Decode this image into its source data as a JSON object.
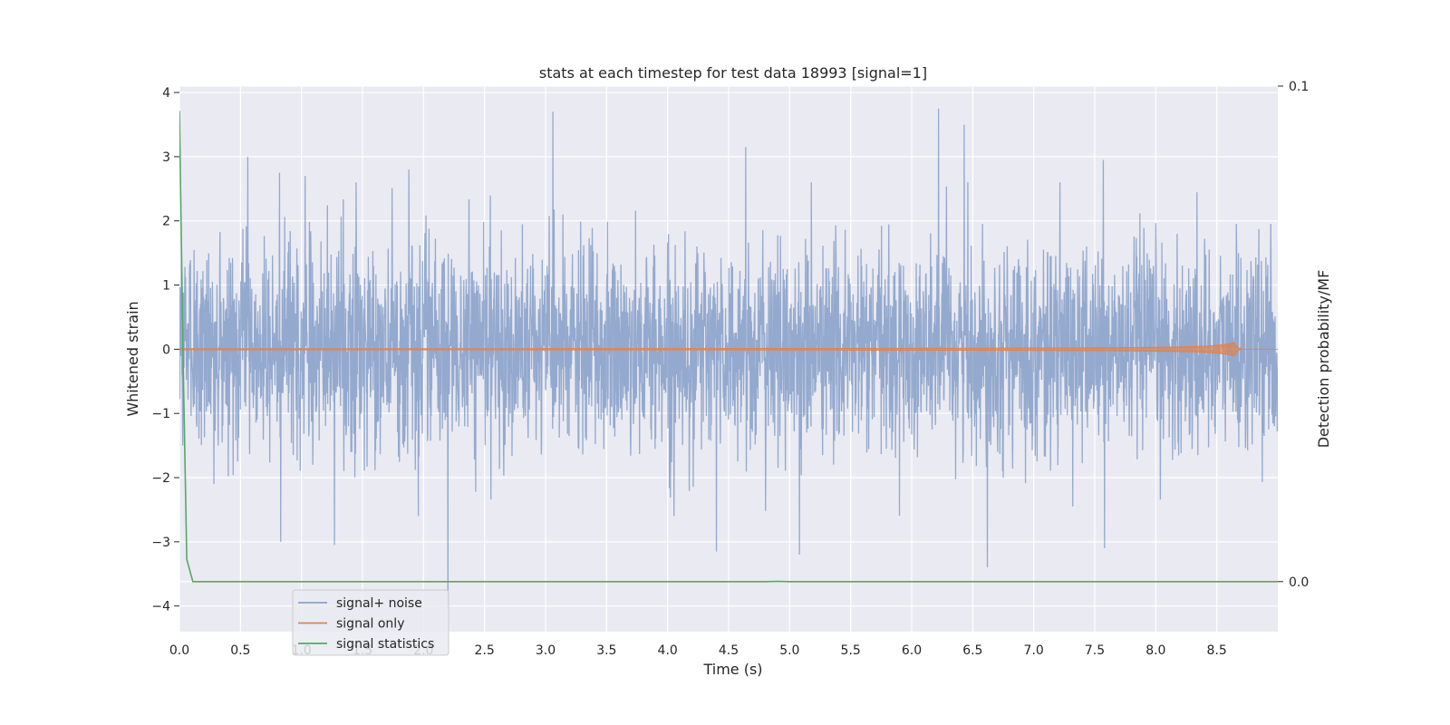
{
  "chart_data": {
    "type": "line",
    "title": "stats at each timestep for test data 18993 [signal=1]",
    "xlabel": "Time (s)",
    "ylabel": "Whitened strain",
    "y2label": "Detection probability/MF",
    "xlim": [
      0,
      9.0
    ],
    "ylim": [
      -4.4,
      4.1
    ],
    "y2lim": [
      -0.0101,
      0.1
    ],
    "xticks": [
      "0.0",
      "0.5",
      "1.0",
      "1.5",
      "2.0",
      "2.5",
      "3.0",
      "3.5",
      "4.0",
      "4.5",
      "5.0",
      "5.5",
      "6.0",
      "6.5",
      "7.0",
      "7.5",
      "8.0",
      "8.5"
    ],
    "yticks": [
      "−4",
      "−3",
      "−2",
      "−1",
      "0",
      "1",
      "2",
      "3",
      "4"
    ],
    "y2ticks": [
      "0.0",
      "0.1"
    ],
    "grid": true,
    "legend_position": "lower-left",
    "colors": {
      "background": "#eaeaf2",
      "signal_noise": "#4c72b0",
      "signal_only": "#dd8452",
      "signal_statistics": "#55a868"
    },
    "series": [
      {
        "name": "signal+ noise",
        "axis": "left",
        "description_values": "dense noise trace, samples mostly within ±2 with spikes to about ±3.7",
        "peaks": [
          {
            "x": 0.56,
            "y": 3.0
          },
          {
            "x": 0.82,
            "y": 2.75
          },
          {
            "x": 1.03,
            "y": 2.7
          },
          {
            "x": 1.88,
            "y": 2.8
          },
          {
            "x": 3.06,
            "y": 3.7
          },
          {
            "x": 4.64,
            "y": 3.15
          },
          {
            "x": 6.22,
            "y": 3.75
          },
          {
            "x": 6.43,
            "y": 3.5
          },
          {
            "x": 7.57,
            "y": 2.95
          },
          {
            "x": 0.83,
            "y": -3.0
          },
          {
            "x": 1.27,
            "y": -3.05
          },
          {
            "x": 2.2,
            "y": -4.0
          },
          {
            "x": 4.4,
            "y": -3.15
          },
          {
            "x": 5.08,
            "y": -3.2
          },
          {
            "x": 6.62,
            "y": -3.4
          },
          {
            "x": 7.58,
            "y": -3.1
          }
        ]
      },
      {
        "name": "signal only",
        "axis": "left",
        "chirp": {
          "start": 0.0,
          "merger": 8.65,
          "end": 9.0,
          "max_amplitude": 0.12
        }
      },
      {
        "name": "signal statistics",
        "axis": "right",
        "x": [
          0.0,
          0.03,
          0.06,
          0.11,
          0.2,
          4.8,
          4.9,
          5.0,
          9.0
        ],
        "y": [
          0.095,
          0.045,
          0.0045,
          0.0,
          0.0,
          0.0,
          5e-05,
          0.0,
          0.0
        ]
      }
    ]
  }
}
